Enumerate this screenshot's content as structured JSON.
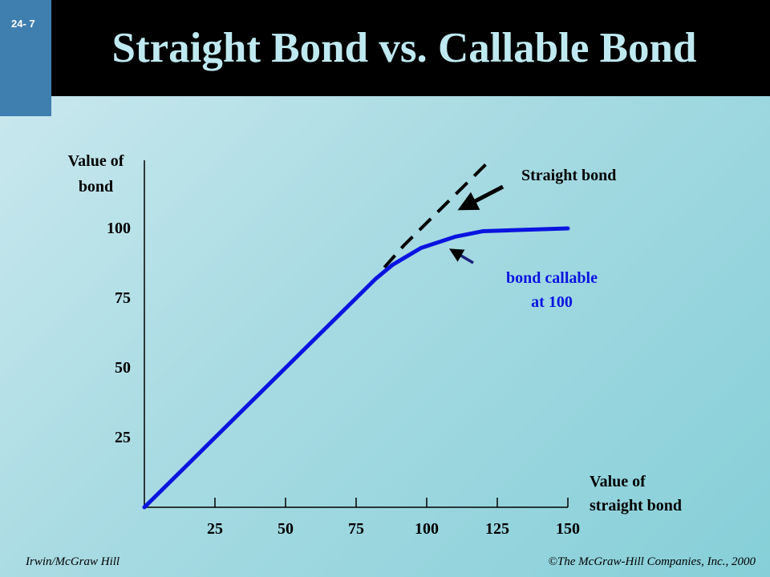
{
  "slide": {
    "number": "24- 7",
    "title": "Straight Bond vs. Callable Bond"
  },
  "footer": {
    "left": "Irwin/McGraw Hill",
    "right": "©The McGraw-Hill Companies, Inc., 2000"
  },
  "chart_data": {
    "type": "line",
    "title": "",
    "ylabel_lines": [
      "Value of",
      "bond"
    ],
    "xlabel_lines": [
      "Value of",
      "straight bond"
    ],
    "xlim": [
      0,
      150
    ],
    "ylim": [
      0,
      125
    ],
    "x_ticks": [
      25,
      50,
      75,
      100,
      125,
      150
    ],
    "y_ticks": [
      25,
      50,
      75,
      100
    ],
    "grid": false,
    "series": [
      {
        "name": "Straight bond",
        "style": "dashed",
        "color": "#000000",
        "x": [
          85,
          92,
          100,
          110,
          122
        ],
        "y": [
          86,
          94,
          102,
          112,
          124
        ]
      },
      {
        "name": "bond callable at 100",
        "label_lines": [
          "bond callable",
          "at 100"
        ],
        "style": "solid",
        "color": "#0a14e0",
        "x": [
          0,
          25,
          50,
          75,
          82,
          88,
          98,
          110,
          120,
          150
        ],
        "y": [
          0,
          25,
          50,
          75,
          82,
          87,
          93,
          97,
          99,
          100
        ]
      }
    ]
  }
}
